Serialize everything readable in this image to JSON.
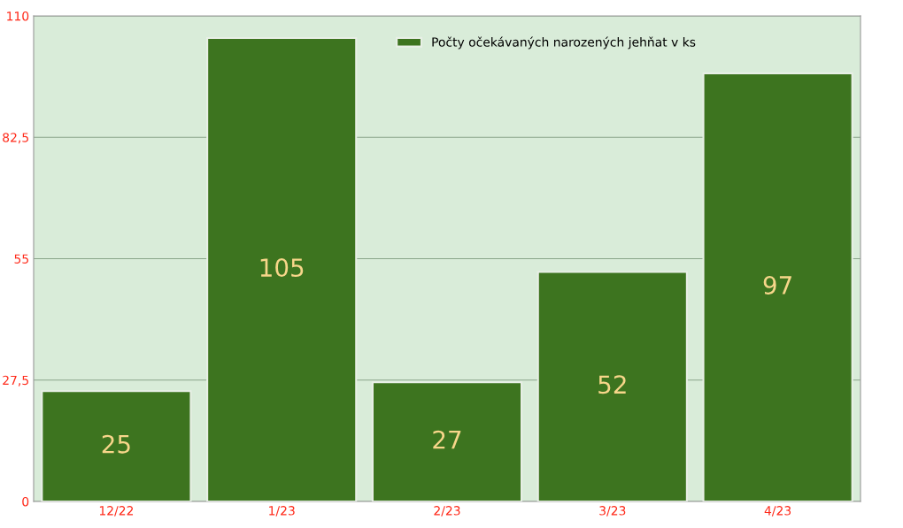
{
  "chart_data": {
    "type": "bar",
    "categories": [
      "12/22",
      "1/23",
      "2/23",
      "3/23",
      "4/23"
    ],
    "series": [
      {
        "name": "Počty očekávaných narozených jehňat v ks",
        "color": "#3d741f",
        "values": [
          25,
          105,
          27,
          52,
          97
        ]
      }
    ],
    "ylim": [
      0,
      110
    ],
    "yticks": [
      0,
      {
        "value": 27.5,
        "label": "27,5"
      },
      55,
      {
        "value": 82.5,
        "label": "82,5"
      },
      110
    ],
    "grid": "y",
    "legend": "top",
    "data_labels": true
  }
}
